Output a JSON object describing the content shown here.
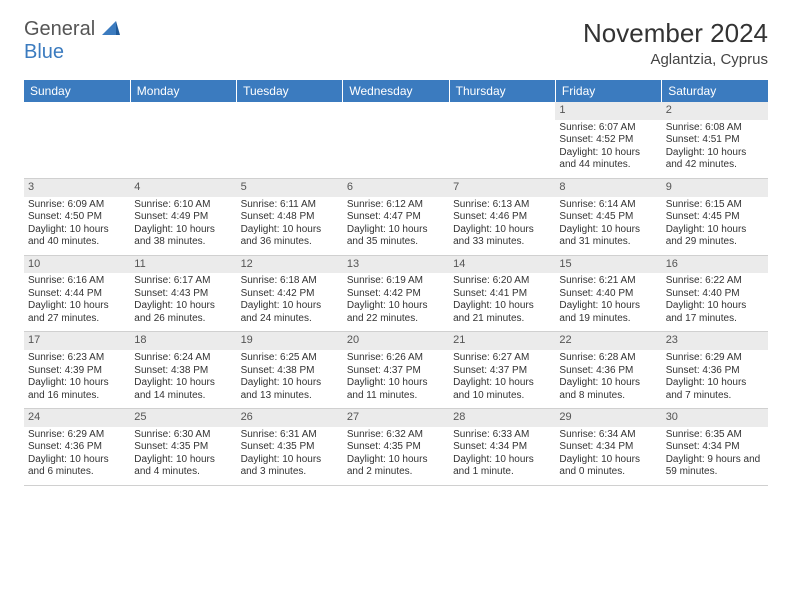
{
  "logo": {
    "text1": "General",
    "text2": "Blue"
  },
  "title": "November 2024",
  "location": "Aglantzia, Cyprus",
  "colors": {
    "header_bg": "#3b7bbf",
    "header_text": "#ffffff",
    "daynum_bg": "#ebebeb",
    "page_bg": "#ffffff",
    "text": "#333333"
  },
  "dayNames": [
    "Sunday",
    "Monday",
    "Tuesday",
    "Wednesday",
    "Thursday",
    "Friday",
    "Saturday"
  ],
  "weeks": [
    [
      null,
      null,
      null,
      null,
      null,
      {
        "n": "1",
        "sr": "6:07 AM",
        "ss": "4:52 PM",
        "dl": "10 hours and 44 minutes."
      },
      {
        "n": "2",
        "sr": "6:08 AM",
        "ss": "4:51 PM",
        "dl": "10 hours and 42 minutes."
      }
    ],
    [
      {
        "n": "3",
        "sr": "6:09 AM",
        "ss": "4:50 PM",
        "dl": "10 hours and 40 minutes."
      },
      {
        "n": "4",
        "sr": "6:10 AM",
        "ss": "4:49 PM",
        "dl": "10 hours and 38 minutes."
      },
      {
        "n": "5",
        "sr": "6:11 AM",
        "ss": "4:48 PM",
        "dl": "10 hours and 36 minutes."
      },
      {
        "n": "6",
        "sr": "6:12 AM",
        "ss": "4:47 PM",
        "dl": "10 hours and 35 minutes."
      },
      {
        "n": "7",
        "sr": "6:13 AM",
        "ss": "4:46 PM",
        "dl": "10 hours and 33 minutes."
      },
      {
        "n": "8",
        "sr": "6:14 AM",
        "ss": "4:45 PM",
        "dl": "10 hours and 31 minutes."
      },
      {
        "n": "9",
        "sr": "6:15 AM",
        "ss": "4:45 PM",
        "dl": "10 hours and 29 minutes."
      }
    ],
    [
      {
        "n": "10",
        "sr": "6:16 AM",
        "ss": "4:44 PM",
        "dl": "10 hours and 27 minutes."
      },
      {
        "n": "11",
        "sr": "6:17 AM",
        "ss": "4:43 PM",
        "dl": "10 hours and 26 minutes."
      },
      {
        "n": "12",
        "sr": "6:18 AM",
        "ss": "4:42 PM",
        "dl": "10 hours and 24 minutes."
      },
      {
        "n": "13",
        "sr": "6:19 AM",
        "ss": "4:42 PM",
        "dl": "10 hours and 22 minutes."
      },
      {
        "n": "14",
        "sr": "6:20 AM",
        "ss": "4:41 PM",
        "dl": "10 hours and 21 minutes."
      },
      {
        "n": "15",
        "sr": "6:21 AM",
        "ss": "4:40 PM",
        "dl": "10 hours and 19 minutes."
      },
      {
        "n": "16",
        "sr": "6:22 AM",
        "ss": "4:40 PM",
        "dl": "10 hours and 17 minutes."
      }
    ],
    [
      {
        "n": "17",
        "sr": "6:23 AM",
        "ss": "4:39 PM",
        "dl": "10 hours and 16 minutes."
      },
      {
        "n": "18",
        "sr": "6:24 AM",
        "ss": "4:38 PM",
        "dl": "10 hours and 14 minutes."
      },
      {
        "n": "19",
        "sr": "6:25 AM",
        "ss": "4:38 PM",
        "dl": "10 hours and 13 minutes."
      },
      {
        "n": "20",
        "sr": "6:26 AM",
        "ss": "4:37 PM",
        "dl": "10 hours and 11 minutes."
      },
      {
        "n": "21",
        "sr": "6:27 AM",
        "ss": "4:37 PM",
        "dl": "10 hours and 10 minutes."
      },
      {
        "n": "22",
        "sr": "6:28 AM",
        "ss": "4:36 PM",
        "dl": "10 hours and 8 minutes."
      },
      {
        "n": "23",
        "sr": "6:29 AM",
        "ss": "4:36 PM",
        "dl": "10 hours and 7 minutes."
      }
    ],
    [
      {
        "n": "24",
        "sr": "6:29 AM",
        "ss": "4:36 PM",
        "dl": "10 hours and 6 minutes."
      },
      {
        "n": "25",
        "sr": "6:30 AM",
        "ss": "4:35 PM",
        "dl": "10 hours and 4 minutes."
      },
      {
        "n": "26",
        "sr": "6:31 AM",
        "ss": "4:35 PM",
        "dl": "10 hours and 3 minutes."
      },
      {
        "n": "27",
        "sr": "6:32 AM",
        "ss": "4:35 PM",
        "dl": "10 hours and 2 minutes."
      },
      {
        "n": "28",
        "sr": "6:33 AM",
        "ss": "4:34 PM",
        "dl": "10 hours and 1 minute."
      },
      {
        "n": "29",
        "sr": "6:34 AM",
        "ss": "4:34 PM",
        "dl": "10 hours and 0 minutes."
      },
      {
        "n": "30",
        "sr": "6:35 AM",
        "ss": "4:34 PM",
        "dl": "9 hours and 59 minutes."
      }
    ]
  ],
  "labels": {
    "sunrise": "Sunrise: ",
    "sunset": "Sunset: ",
    "daylight": "Daylight: "
  }
}
